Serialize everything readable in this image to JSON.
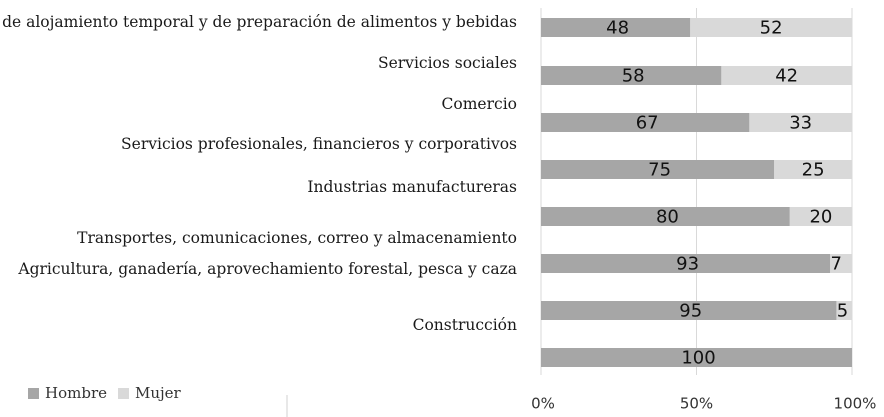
{
  "chart_data": {
    "type": "bar",
    "stacked": true,
    "orientation": "horizontal",
    "unit": "%",
    "categories": [
      "Servicios de alojamiento temporal y de preparación de alimentos y bebidas",
      "Servicios sociales",
      "Comercio",
      "Servicios profesionales, financieros y corporativos",
      "Industrias manufactureras",
      "Transportes, comunicaciones, correo y almacenamiento",
      "Agricultura, ganadería, aprovechamiento forestal, pesca y caza",
      "Construcción"
    ],
    "series": [
      {
        "name": "Hombre",
        "values": [
          48,
          58,
          67,
          75,
          80,
          93,
          95,
          100
        ],
        "color": "#a6a6a6"
      },
      {
        "name": "Mujer",
        "values": [
          52,
          42,
          33,
          25,
          20,
          7,
          5,
          0
        ],
        "color": "#d9d9d9"
      }
    ],
    "xlim": [
      0,
      100
    ],
    "x_ticks": [
      "0%",
      "50%",
      "100%"
    ],
    "grid": true,
    "legend": "bottom-left",
    "title": "",
    "xlabel": "",
    "ylabel": ""
  }
}
